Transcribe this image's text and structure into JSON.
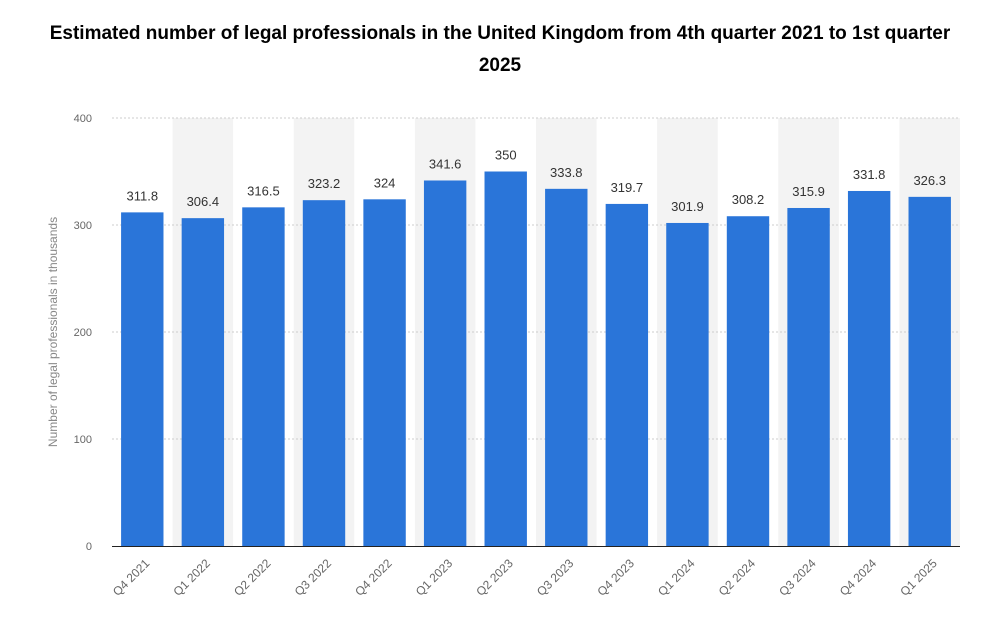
{
  "chart_data": {
    "type": "bar",
    "title": "Estimated number of legal professionals in the United Kingdom from 4th quarter 2021 to 1st quarter 2025",
    "xlabel": "",
    "ylabel": "Number of legal professionals in thousands",
    "categories": [
      "Q4 2021",
      "Q1 2022",
      "Q2 2022",
      "Q3 2022",
      "Q4 2022",
      "Q1 2023",
      "Q2 2023",
      "Q3 2023",
      "Q4 2023",
      "Q1 2024",
      "Q2 2024",
      "Q3 2024",
      "Q4 2024",
      "Q1 2025"
    ],
    "values": [
      311.8,
      306.4,
      316.5,
      323.2,
      324,
      341.6,
      350,
      333.8,
      319.7,
      301.9,
      308.2,
      315.9,
      331.8,
      326.3
    ],
    "value_labels": [
      "311.8",
      "306.4",
      "316.5",
      "323.2",
      "324",
      "341.6",
      "350",
      "333.8",
      "319.7",
      "301.9",
      "308.2",
      "315.9",
      "331.8",
      "326.3"
    ],
    "ylim": [
      0,
      400
    ],
    "yticks": [
      0,
      100,
      200,
      300,
      400
    ],
    "grid": true,
    "bar_color": "#2a75d9",
    "band_color": "#f3f3f3"
  }
}
